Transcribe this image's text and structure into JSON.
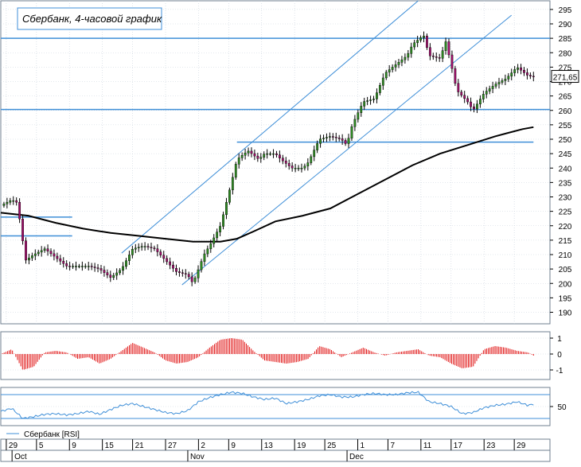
{
  "chart_data": [
    {
      "type": "candlestick",
      "title": "Сбербанк, 4-часовой график",
      "ylim": [
        186,
        298
      ],
      "yticks": [
        190,
        195,
        200,
        205,
        210,
        215,
        220,
        225,
        230,
        235,
        240,
        245,
        250,
        255,
        260,
        265,
        270,
        275,
        280,
        285,
        290,
        295
      ],
      "last_price_label": "271,65",
      "last_price": 271.65,
      "grid": true,
      "colors": {
        "up": "#2e8b22",
        "down": "#a0106b",
        "lines": "#3f8fd8",
        "ma": "#000000",
        "grid": "#c8d2dc"
      },
      "horizontal_levels": [
        {
          "price": 285,
          "x_range": [
            0,
            1
          ]
        },
        {
          "price": 260.3,
          "x_range": [
            0,
            1
          ]
        },
        {
          "price": 249,
          "x_range": [
            0.43,
            0.97
          ]
        },
        {
          "price": 216.5,
          "x_range": [
            0,
            0.13
          ]
        },
        {
          "price": 223,
          "x_range": [
            0,
            0.13
          ]
        }
      ],
      "trend_channel": [
        {
          "from": [
            0.22,
            210.5
          ],
          "to": [
            0.76,
            298
          ]
        },
        {
          "from": [
            0.33,
            199.5
          ],
          "to": [
            0.93,
            293
          ]
        }
      ],
      "close_path": [
        [
          0.0,
          227
        ],
        [
          0.02,
          229
        ],
        [
          0.03,
          228
        ],
        [
          0.045,
          208
        ],
        [
          0.06,
          210
        ],
        [
          0.08,
          212
        ],
        [
          0.1,
          209
        ],
        [
          0.12,
          206
        ],
        [
          0.14,
          206
        ],
        [
          0.16,
          206
        ],
        [
          0.18,
          205
        ],
        [
          0.2,
          202
        ],
        [
          0.22,
          205
        ],
        [
          0.24,
          212
        ],
        [
          0.26,
          213
        ],
        [
          0.28,
          212
        ],
        [
          0.3,
          208
        ],
        [
          0.32,
          204
        ],
        [
          0.34,
          203
        ],
        [
          0.35,
          200
        ],
        [
          0.37,
          210
        ],
        [
          0.38,
          213
        ],
        [
          0.4,
          220
        ],
        [
          0.42,
          235
        ],
        [
          0.43,
          243
        ],
        [
          0.45,
          246
        ],
        [
          0.47,
          243
        ],
        [
          0.48,
          245
        ],
        [
          0.5,
          245
        ],
        [
          0.51,
          243
        ],
        [
          0.53,
          240
        ],
        [
          0.55,
          240
        ],
        [
          0.56,
          242
        ],
        [
          0.58,
          250
        ],
        [
          0.6,
          251
        ],
        [
          0.62,
          250
        ],
        [
          0.63,
          248
        ],
        [
          0.64,
          255
        ],
        [
          0.66,
          263
        ],
        [
          0.68,
          264
        ],
        [
          0.7,
          273
        ],
        [
          0.72,
          276
        ],
        [
          0.74,
          279
        ],
        [
          0.75,
          283
        ],
        [
          0.77,
          286
        ],
        [
          0.78,
          279
        ],
        [
          0.8,
          278
        ],
        [
          0.81,
          284
        ],
        [
          0.82,
          276
        ],
        [
          0.83,
          267
        ],
        [
          0.85,
          263
        ],
        [
          0.86,
          260
        ],
        [
          0.88,
          266
        ],
        [
          0.9,
          269
        ],
        [
          0.92,
          271
        ],
        [
          0.94,
          275
        ],
        [
          0.96,
          272
        ],
        [
          0.97,
          271.65
        ]
      ],
      "moving_average": [
        [
          0.0,
          224.5
        ],
        [
          0.05,
          223.5
        ],
        [
          0.1,
          221
        ],
        [
          0.15,
          219
        ],
        [
          0.2,
          217.5
        ],
        [
          0.25,
          216.5
        ],
        [
          0.3,
          215.5
        ],
        [
          0.35,
          214.5
        ],
        [
          0.4,
          214.5
        ],
        [
          0.43,
          215.5
        ],
        [
          0.46,
          218
        ],
        [
          0.5,
          221.5
        ],
        [
          0.55,
          223.5
        ],
        [
          0.6,
          226
        ],
        [
          0.65,
          231
        ],
        [
          0.7,
          236
        ],
        [
          0.75,
          241
        ],
        [
          0.8,
          245
        ],
        [
          0.85,
          248
        ],
        [
          0.9,
          251
        ],
        [
          0.95,
          253.5
        ],
        [
          0.97,
          254.2
        ]
      ]
    },
    {
      "type": "bar",
      "ylim": [
        -1.6,
        1.4
      ],
      "yticks": [
        1,
        0,
        -1
      ],
      "path": [
        [
          0.0,
          0
        ],
        [
          0.02,
          0.3
        ],
        [
          0.04,
          -1.0
        ],
        [
          0.06,
          -0.8
        ],
        [
          0.08,
          0.1
        ],
        [
          0.1,
          0.2
        ],
        [
          0.12,
          0.1
        ],
        [
          0.14,
          -0.3
        ],
        [
          0.16,
          -0.2
        ],
        [
          0.18,
          -0.6
        ],
        [
          0.2,
          -0.3
        ],
        [
          0.22,
          0.2
        ],
        [
          0.24,
          0.7
        ],
        [
          0.26,
          0.4
        ],
        [
          0.28,
          0.1
        ],
        [
          0.3,
          -0.4
        ],
        [
          0.32,
          -0.6
        ],
        [
          0.34,
          -0.5
        ],
        [
          0.36,
          -0.2
        ],
        [
          0.38,
          0.4
        ],
        [
          0.4,
          0.9
        ],
        [
          0.42,
          1.0
        ],
        [
          0.44,
          0.9
        ],
        [
          0.46,
          0.2
        ],
        [
          0.48,
          -0.4
        ],
        [
          0.5,
          -0.5
        ],
        [
          0.52,
          -0.6
        ],
        [
          0.54,
          -0.5
        ],
        [
          0.56,
          -0.3
        ],
        [
          0.58,
          0.5
        ],
        [
          0.6,
          0.3
        ],
        [
          0.62,
          -0.2
        ],
        [
          0.64,
          0.1
        ],
        [
          0.66,
          0.4
        ],
        [
          0.68,
          0.1
        ],
        [
          0.7,
          -0.1
        ],
        [
          0.72,
          0.1
        ],
        [
          0.74,
          0.2
        ],
        [
          0.76,
          0.3
        ],
        [
          0.78,
          -0.1
        ],
        [
          0.8,
          -0.2
        ],
        [
          0.82,
          -0.6
        ],
        [
          0.84,
          -0.9
        ],
        [
          0.86,
          -0.8
        ],
        [
          0.88,
          0.3
        ],
        [
          0.9,
          0.5
        ],
        [
          0.92,
          0.4
        ],
        [
          0.94,
          0.2
        ],
        [
          0.96,
          0.1
        ],
        [
          0.97,
          -0.1
        ]
      ]
    },
    {
      "type": "line",
      "legend": "Сбербанк [RSI]",
      "ylim": [
        18,
        82
      ],
      "yticks": [
        50
      ],
      "levels": [
        70,
        30
      ],
      "path": [
        [
          0.0,
          42
        ],
        [
          0.02,
          47
        ],
        [
          0.04,
          30
        ],
        [
          0.06,
          33
        ],
        [
          0.08,
          37
        ],
        [
          0.1,
          38
        ],
        [
          0.12,
          36
        ],
        [
          0.14,
          38
        ],
        [
          0.16,
          42
        ],
        [
          0.18,
          37
        ],
        [
          0.2,
          45
        ],
        [
          0.22,
          52
        ],
        [
          0.24,
          55
        ],
        [
          0.26,
          50
        ],
        [
          0.28,
          45
        ],
        [
          0.3,
          40
        ],
        [
          0.32,
          38
        ],
        [
          0.34,
          43
        ],
        [
          0.36,
          58
        ],
        [
          0.38,
          65
        ],
        [
          0.4,
          70
        ],
        [
          0.42,
          74
        ],
        [
          0.44,
          72
        ],
        [
          0.46,
          66
        ],
        [
          0.48,
          62
        ],
        [
          0.5,
          64
        ],
        [
          0.52,
          55
        ],
        [
          0.54,
          58
        ],
        [
          0.56,
          62
        ],
        [
          0.58,
          68
        ],
        [
          0.6,
          70
        ],
        [
          0.62,
          66
        ],
        [
          0.64,
          66
        ],
        [
          0.66,
          70
        ],
        [
          0.68,
          72
        ],
        [
          0.7,
          70
        ],
        [
          0.72,
          70
        ],
        [
          0.74,
          73
        ],
        [
          0.76,
          74
        ],
        [
          0.78,
          58
        ],
        [
          0.8,
          55
        ],
        [
          0.82,
          50
        ],
        [
          0.84,
          38
        ],
        [
          0.86,
          40
        ],
        [
          0.88,
          48
        ],
        [
          0.9,
          52
        ],
        [
          0.92,
          54
        ],
        [
          0.94,
          58
        ],
        [
          0.96,
          52
        ],
        [
          0.97,
          54
        ]
      ]
    }
  ],
  "x_axis": {
    "day_ticks": [
      {
        "label": "29",
        "pos": 0.01
      },
      {
        "label": "5",
        "pos": 0.065
      },
      {
        "label": "9",
        "pos": 0.125
      },
      {
        "label": "15",
        "pos": 0.185
      },
      {
        "label": "21",
        "pos": 0.24
      },
      {
        "label": "27",
        "pos": 0.3
      },
      {
        "label": "2",
        "pos": 0.36
      },
      {
        "label": "9",
        "pos": 0.415
      },
      {
        "label": "13",
        "pos": 0.475
      },
      {
        "label": "19",
        "pos": 0.535
      },
      {
        "label": "25",
        "pos": 0.59
      },
      {
        "label": "1",
        "pos": 0.65
      },
      {
        "label": "7",
        "pos": 0.705
      },
      {
        "label": "11",
        "pos": 0.765
      },
      {
        "label": "17",
        "pos": 0.82
      },
      {
        "label": "23",
        "pos": 0.88
      },
      {
        "label": "29",
        "pos": 0.935
      }
    ],
    "month_ticks": [
      {
        "label": "Oct",
        "pos": 0.035
      },
      {
        "label": "Nov",
        "pos": 0.355
      },
      {
        "label": "Dec",
        "pos": 0.645
      }
    ]
  }
}
